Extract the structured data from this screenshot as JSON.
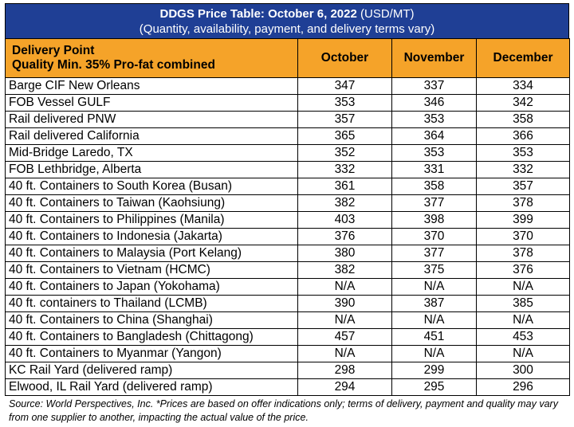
{
  "title": {
    "bold": "DDGS Price Table: October 6, 2022",
    "unit": "(USD/MT)",
    "subtitle": "(Quantity, availability, payment, and delivery terms vary)"
  },
  "header": {
    "delivery_point": "Delivery Point",
    "quality": "Quality Min. 35% Pro-fat combined",
    "months": [
      "October",
      "November",
      "December"
    ]
  },
  "rows": [
    {
      "name": "Barge CIF New Orleans",
      "oct": "347",
      "nov": "337",
      "dec": "334"
    },
    {
      "name": "FOB Vessel GULF",
      "oct": "353",
      "nov": "346",
      "dec": "342"
    },
    {
      "name": "Rail delivered PNW",
      "oct": "357",
      "nov": "353",
      "dec": "358"
    },
    {
      "name": "Rail delivered California",
      "oct": "365",
      "nov": "364",
      "dec": "366"
    },
    {
      "name": "Mid-Bridge Laredo, TX",
      "oct": "352",
      "nov": "353",
      "dec": "353"
    },
    {
      "name": "FOB Lethbridge, Alberta",
      "oct": "332",
      "nov": "331",
      "dec": "332"
    },
    {
      "name": "40 ft. Containers to South Korea (Busan)",
      "oct": "361",
      "nov": "358",
      "dec": "357"
    },
    {
      "name": "40 ft. Containers to Taiwan (Kaohsiung)",
      "oct": "382",
      "nov": "377",
      "dec": "378"
    },
    {
      "name": "40 ft. Containers to Philippines (Manila)",
      "oct": "403",
      "nov": "398",
      "dec": "399"
    },
    {
      "name": "40 ft. Containers to Indonesia (Jakarta)",
      "oct": "376",
      "nov": "370",
      "dec": "370"
    },
    {
      "name": "40 ft. Containers to Malaysia (Port Kelang)",
      "oct": "380",
      "nov": "377",
      "dec": "378"
    },
    {
      "name": "40 ft. Containers to Vietnam (HCMC)",
      "oct": "382",
      "nov": "375",
      "dec": "376"
    },
    {
      "name": "40 ft. Containers to Japan (Yokohama)",
      "oct": "N/A",
      "nov": "N/A",
      "dec": "N/A"
    },
    {
      "name": "40 ft. containers to Thailand (LCMB)",
      "oct": "390",
      "nov": "387",
      "dec": "385"
    },
    {
      "name": "40 ft. Containers to China (Shanghai)",
      "oct": "N/A",
      "nov": "N/A",
      "dec": "N/A"
    },
    {
      "name": "40 ft. Containers to Bangladesh (Chittagong)",
      "oct": "457",
      "nov": "451",
      "dec": "453"
    },
    {
      "name": "40 ft. Containers to Myanmar (Yangon)",
      "oct": "N/A",
      "nov": "N/A",
      "dec": "N/A"
    },
    {
      "name": "KC Rail Yard (delivered ramp)",
      "oct": "298",
      "nov": "299",
      "dec": "300"
    },
    {
      "name": "Elwood, IL Rail Yard (delivered ramp)",
      "oct": "294",
      "nov": "295",
      "dec": "296"
    }
  ],
  "footer": "Source: World Perspectives, Inc. *Prices are based on offer indications only; terms of delivery, payment and quality may vary from one supplier to another, impacting the actual value of the price.",
  "colors": {
    "title_bg": "#1f3f95",
    "header_bg": "#f5a329"
  }
}
